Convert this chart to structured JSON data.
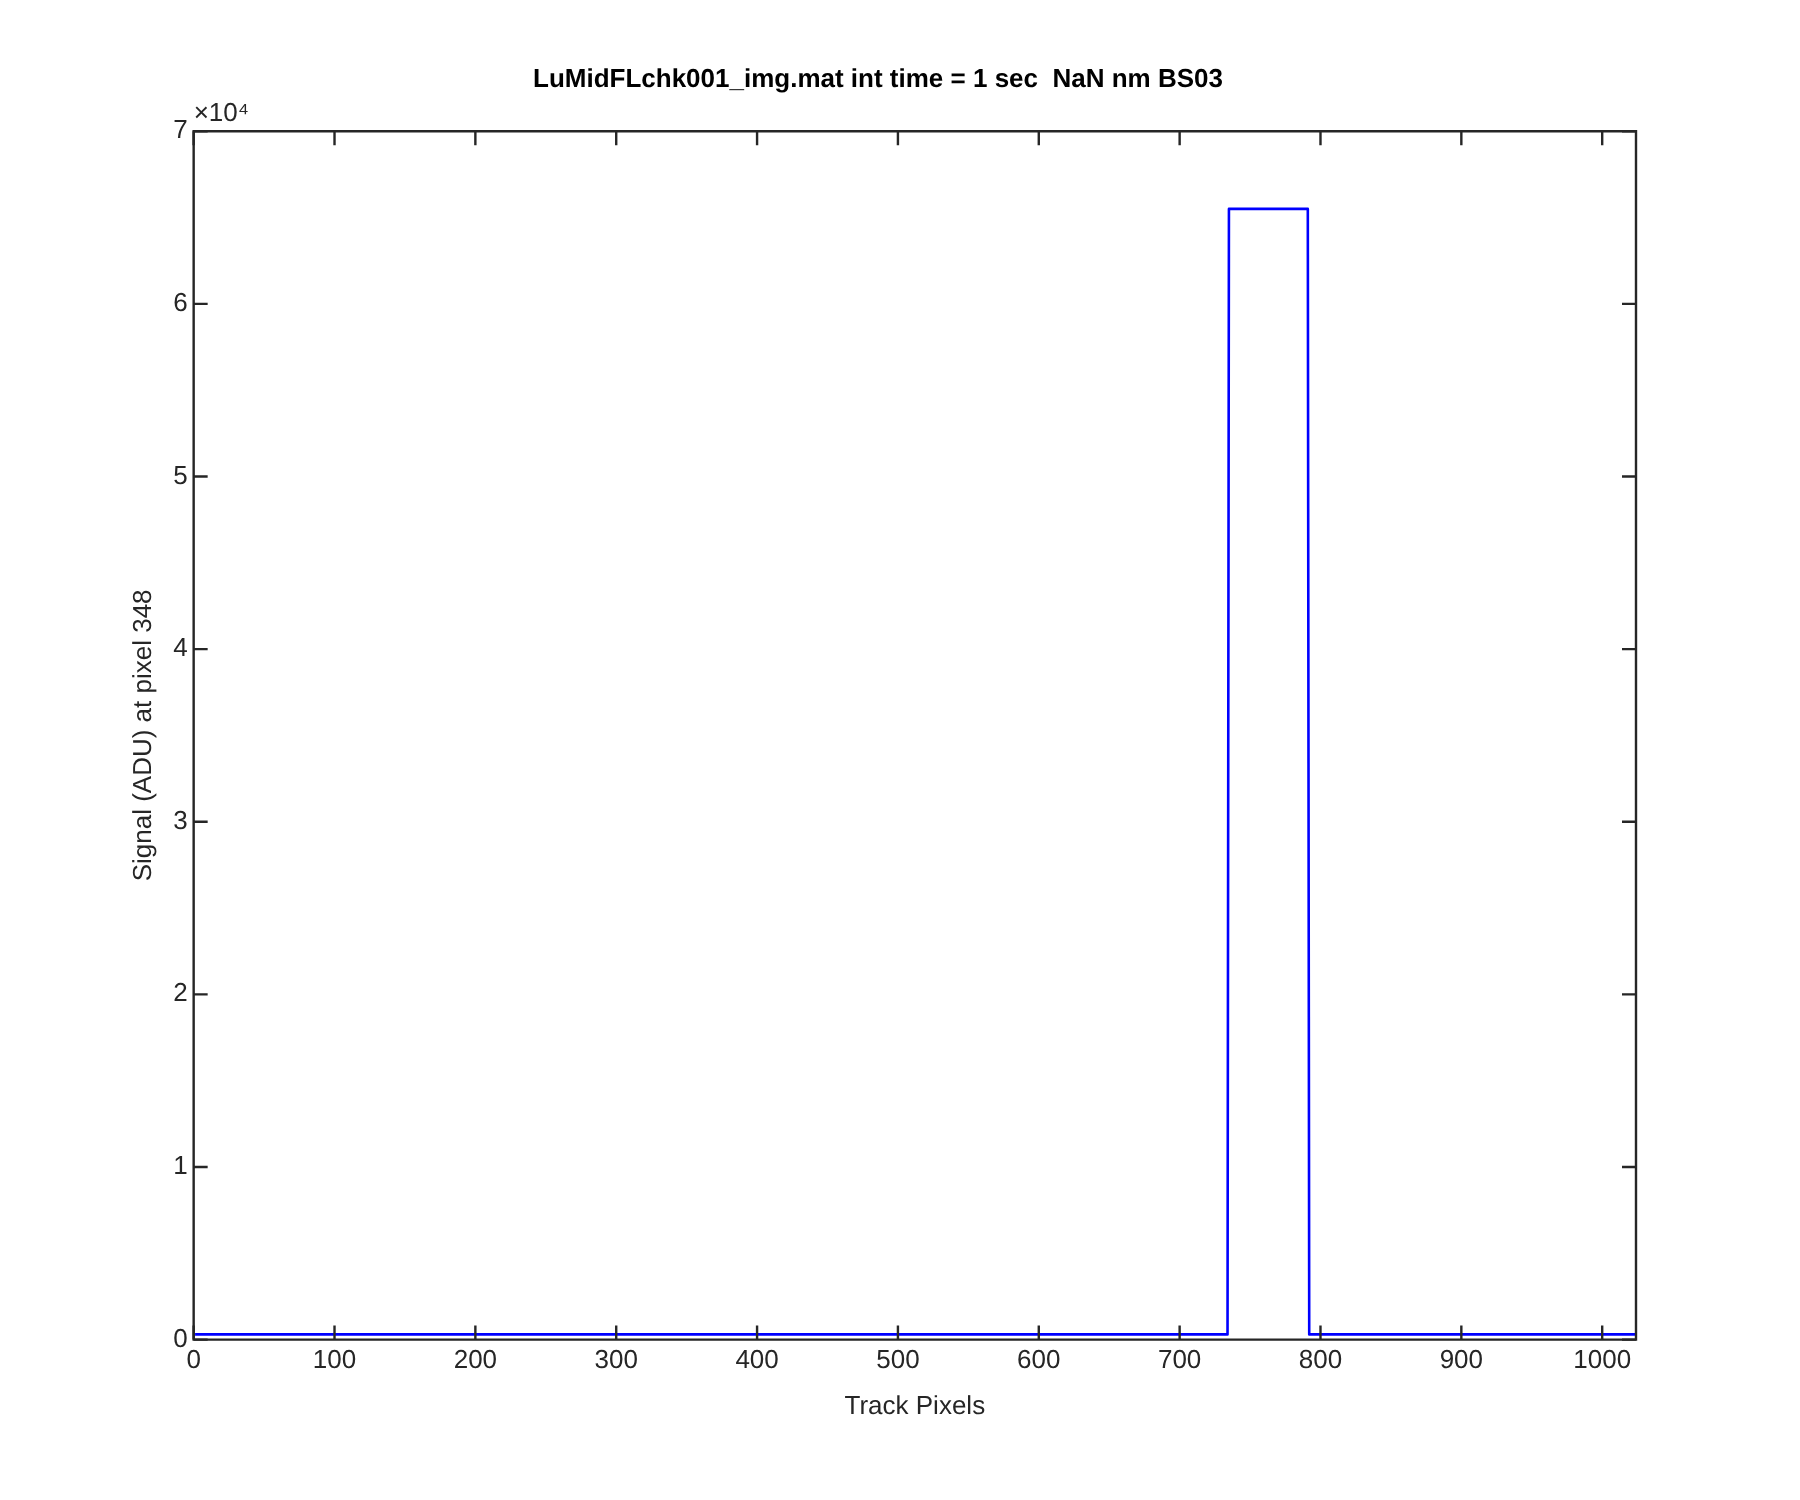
{
  "chart_data": {
    "type": "line",
    "title": "LuMidFLchk001_img.mat int time = 1 sec  NaN nm BS03",
    "xlabel": "Track Pixels",
    "ylabel": "Signal (ADU) at pixel 348",
    "annotations": [
      "×10⁴"
    ],
    "xlim": [
      0,
      1024
    ],
    "xticks": [
      0,
      100,
      200,
      300,
      400,
      500,
      600,
      700,
      800,
      900,
      1000
    ],
    "ylim": [
      0,
      7
    ],
    "yticks": [
      0,
      1,
      2,
      3,
      4,
      5,
      6,
      7
    ],
    "series": [
      {
        "color": "#0000ff",
        "x": [
          1,
          734,
          735,
          791,
          792,
          1024
        ],
        "values": [
          0.03,
          0.03,
          6.55,
          6.55,
          0.03,
          0.03
        ]
      }
    ]
  }
}
